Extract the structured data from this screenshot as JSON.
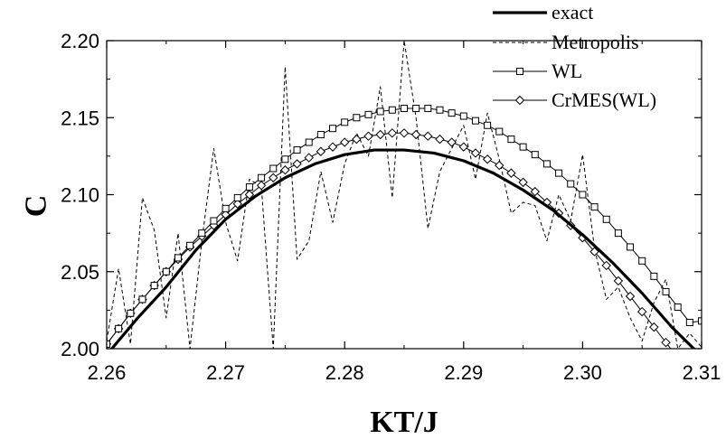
{
  "chart_data": {
    "type": "line",
    "title": "",
    "xlabel": "KT/J",
    "ylabel": "C",
    "xlim": [
      2.26,
      2.31
    ],
    "ylim": [
      2.0,
      2.2
    ],
    "x_ticks": [
      "2.26",
      "2.27",
      "2.28",
      "2.29",
      "2.30",
      "2.31"
    ],
    "y_ticks": [
      "2.00",
      "2.05",
      "2.10",
      "2.15",
      "2.20"
    ],
    "grid": false,
    "legend_position": "top-right",
    "series": [
      {
        "name": "exact",
        "style": "thick-solid",
        "x": [
          2.26,
          2.2625,
          2.265,
          2.2675,
          2.27,
          2.2725,
          2.275,
          2.2775,
          2.28,
          2.2825,
          2.285,
          2.2875,
          2.29,
          2.2925,
          2.295,
          2.2975,
          2.3,
          2.3025,
          2.305,
          2.3075,
          2.31
        ],
        "values": [
          1.996,
          2.019,
          2.04,
          2.064,
          2.084,
          2.099,
          2.111,
          2.12,
          2.126,
          2.129,
          2.129,
          2.127,
          2.122,
          2.114,
          2.103,
          2.09,
          2.074,
          2.056,
          2.036,
          2.014,
          1.995
        ]
      },
      {
        "name": "Metropolis",
        "style": "dashed",
        "x": [
          2.26,
          2.261,
          2.262,
          2.263,
          2.264,
          2.265,
          2.266,
          2.267,
          2.268,
          2.269,
          2.27,
          2.271,
          2.272,
          2.273,
          2.274,
          2.275,
          2.276,
          2.277,
          2.278,
          2.279,
          2.28,
          2.281,
          2.282,
          2.283,
          2.284,
          2.285,
          2.286,
          2.287,
          2.288,
          2.289,
          2.29,
          2.291,
          2.292,
          2.293,
          2.294,
          2.295,
          2.296,
          2.297,
          2.298,
          2.299,
          2.3,
          2.301,
          2.302,
          2.303,
          2.304,
          2.305,
          2.306,
          2.307,
          2.308,
          2.309,
          2.31
        ],
        "values": [
          2.005,
          2.052,
          2.003,
          2.098,
          2.077,
          2.02,
          2.075,
          2.0,
          2.07,
          2.13,
          2.082,
          2.057,
          2.11,
          2.105,
          2.0,
          2.183,
          2.058,
          2.07,
          2.115,
          2.082,
          2.12,
          2.14,
          2.125,
          2.17,
          2.098,
          2.2,
          2.15,
          2.078,
          2.115,
          2.13,
          2.145,
          2.11,
          2.153,
          2.123,
          2.088,
          2.095,
          2.093,
          2.07,
          2.1,
          2.083,
          2.126,
          2.065,
          2.032,
          2.04,
          2.02,
          2.005,
          2.03,
          2.045,
          2.0,
          2.01,
          2.001
        ]
      },
      {
        "name": "WL",
        "style": "thin-solid-square-markers",
        "x": [
          2.26,
          2.261,
          2.262,
          2.263,
          2.264,
          2.265,
          2.266,
          2.267,
          2.268,
          2.269,
          2.27,
          2.271,
          2.272,
          2.273,
          2.274,
          2.275,
          2.276,
          2.277,
          2.278,
          2.279,
          2.28,
          2.281,
          2.282,
          2.283,
          2.284,
          2.285,
          2.286,
          2.287,
          2.288,
          2.289,
          2.29,
          2.291,
          2.292,
          2.293,
          2.294,
          2.295,
          2.296,
          2.297,
          2.298,
          2.299,
          2.3,
          2.301,
          2.302,
          2.303,
          2.304,
          2.305,
          2.306,
          2.307,
          2.308,
          2.309,
          2.31
        ],
        "values": [
          2.003,
          2.013,
          2.023,
          2.032,
          2.041,
          2.05,
          2.059,
          2.067,
          2.075,
          2.083,
          2.091,
          2.098,
          2.105,
          2.111,
          2.117,
          2.123,
          2.129,
          2.134,
          2.139,
          2.143,
          2.147,
          2.15,
          2.152,
          2.154,
          2.155,
          2.156,
          2.156,
          2.156,
          2.155,
          2.153,
          2.151,
          2.148,
          2.145,
          2.141,
          2.136,
          2.131,
          2.126,
          2.12,
          2.114,
          2.107,
          2.1,
          2.092,
          2.084,
          2.075,
          2.066,
          2.057,
          2.047,
          2.037,
          2.027,
          2.017,
          2.018
        ]
      },
      {
        "name": "CrMES(WL)",
        "style": "thin-solid-diamond-markers",
        "x": [
          2.26,
          2.261,
          2.262,
          2.263,
          2.264,
          2.265,
          2.266,
          2.267,
          2.268,
          2.269,
          2.27,
          2.271,
          2.272,
          2.273,
          2.274,
          2.275,
          2.276,
          2.277,
          2.278,
          2.279,
          2.28,
          2.281,
          2.282,
          2.283,
          2.284,
          2.285,
          2.286,
          2.287,
          2.288,
          2.289,
          2.29,
          2.291,
          2.292,
          2.293,
          2.294,
          2.295,
          2.296,
          2.297,
          2.298,
          2.299,
          2.3,
          2.301,
          2.302,
          2.303,
          2.304,
          2.305,
          2.306,
          2.307,
          2.308,
          2.309
        ],
        "values": [
          2.003,
          2.013,
          2.023,
          2.032,
          2.041,
          2.05,
          2.058,
          2.066,
          2.073,
          2.08,
          2.087,
          2.094,
          2.1,
          2.106,
          2.111,
          2.116,
          2.12,
          2.124,
          2.128,
          2.131,
          2.134,
          2.136,
          2.138,
          2.139,
          2.14,
          2.14,
          2.139,
          2.138,
          2.136,
          2.134,
          2.131,
          2.127,
          2.123,
          2.119,
          2.114,
          2.108,
          2.102,
          2.095,
          2.088,
          2.08,
          2.072,
          2.063,
          2.054,
          2.044,
          2.034,
          2.024,
          2.014,
          2.004,
          1.994,
          1.984
        ]
      }
    ]
  }
}
